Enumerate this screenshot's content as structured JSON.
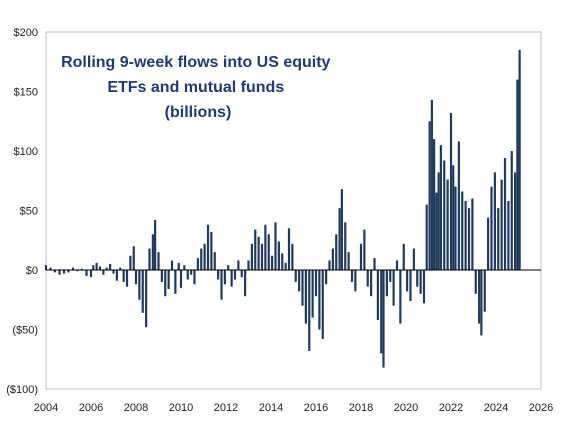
{
  "chart_data": {
    "type": "bar",
    "title_lines": [
      "Rolling 9-week flows into US equity",
      "ETFs and mutual funds",
      "(billions)"
    ],
    "xlabel": "",
    "ylabel": "",
    "xlim": [
      2004,
      2026
    ],
    "ylim": [
      -100,
      200
    ],
    "x_ticks": [
      2004,
      2006,
      2008,
      2010,
      2012,
      2014,
      2016,
      2018,
      2020,
      2022,
      2024,
      2026
    ],
    "x_tick_labels": [
      "2004",
      "2006",
      "2008",
      "2010",
      "2012",
      "2014",
      "2016",
      "2018",
      "2020",
      "2022",
      "2024",
      "2026"
    ],
    "y_ticks": [
      -100,
      -50,
      0,
      50,
      100,
      150,
      200
    ],
    "y_tick_labels": [
      "($100)",
      "($50)",
      "$0",
      "$50",
      "$100",
      "$150",
      "$200"
    ],
    "grid": false,
    "legend": false,
    "colors": {
      "bar": "#1f3a5f",
      "title": "#1f3a7a",
      "axis": "#000000",
      "frame": "#bfbfbf"
    },
    "series": [
      {
        "values": [
          [
            2004.0,
            4
          ],
          [
            2004.2,
            2
          ],
          [
            2004.4,
            -2
          ],
          [
            2004.6,
            -4
          ],
          [
            2004.8,
            -3
          ],
          [
            2005.0,
            -2
          ],
          [
            2005.2,
            2
          ],
          [
            2005.4,
            -1
          ],
          [
            2005.6,
            1
          ],
          [
            2005.8,
            -5
          ],
          [
            2006.0,
            -6
          ],
          [
            2006.1,
            4
          ],
          [
            2006.25,
            6
          ],
          [
            2006.4,
            3
          ],
          [
            2006.55,
            -4
          ],
          [
            2006.7,
            2
          ],
          [
            2006.85,
            5
          ],
          [
            2007.0,
            -3
          ],
          [
            2007.15,
            -9
          ],
          [
            2007.3,
            2
          ],
          [
            2007.45,
            -10
          ],
          [
            2007.6,
            -14
          ],
          [
            2007.75,
            12
          ],
          [
            2007.9,
            20
          ],
          [
            2008.0,
            -12
          ],
          [
            2008.15,
            -25
          ],
          [
            2008.3,
            -36
          ],
          [
            2008.45,
            -48
          ],
          [
            2008.6,
            18
          ],
          [
            2008.75,
            30
          ],
          [
            2008.85,
            42
          ],
          [
            2009.0,
            15
          ],
          [
            2009.15,
            -10
          ],
          [
            2009.3,
            -22
          ],
          [
            2009.45,
            -16
          ],
          [
            2009.6,
            8
          ],
          [
            2009.75,
            -20
          ],
          [
            2009.9,
            6
          ],
          [
            2010.0,
            -15
          ],
          [
            2010.15,
            4
          ],
          [
            2010.3,
            -8
          ],
          [
            2010.45,
            -4
          ],
          [
            2010.6,
            -12
          ],
          [
            2010.75,
            10
          ],
          [
            2010.9,
            18
          ],
          [
            2011.05,
            22
          ],
          [
            2011.2,
            38
          ],
          [
            2011.35,
            32
          ],
          [
            2011.5,
            15
          ],
          [
            2011.65,
            -8
          ],
          [
            2011.8,
            -25
          ],
          [
            2011.95,
            -12
          ],
          [
            2012.1,
            4
          ],
          [
            2012.25,
            -14
          ],
          [
            2012.4,
            -8
          ],
          [
            2012.55,
            8
          ],
          [
            2012.7,
            -6
          ],
          [
            2012.85,
            -22
          ],
          [
            2013.0,
            8
          ],
          [
            2013.15,
            22
          ],
          [
            2013.3,
            34
          ],
          [
            2013.45,
            28
          ],
          [
            2013.6,
            22
          ],
          [
            2013.75,
            38
          ],
          [
            2013.9,
            30
          ],
          [
            2014.05,
            12
          ],
          [
            2014.2,
            40
          ],
          [
            2014.35,
            24
          ],
          [
            2014.5,
            14
          ],
          [
            2014.65,
            6
          ],
          [
            2014.8,
            35
          ],
          [
            2014.95,
            22
          ],
          [
            2015.1,
            -10
          ],
          [
            2015.25,
            -18
          ],
          [
            2015.4,
            -30
          ],
          [
            2015.55,
            -45
          ],
          [
            2015.7,
            -68
          ],
          [
            2015.85,
            -40
          ],
          [
            2016.0,
            -22
          ],
          [
            2016.15,
            -50
          ],
          [
            2016.3,
            -58
          ],
          [
            2016.45,
            -12
          ],
          [
            2016.6,
            8
          ],
          [
            2016.75,
            18
          ],
          [
            2016.9,
            30
          ],
          [
            2017.05,
            52
          ],
          [
            2017.15,
            68
          ],
          [
            2017.3,
            40
          ],
          [
            2017.45,
            15
          ],
          [
            2017.6,
            -10
          ],
          [
            2017.75,
            -18
          ],
          [
            2018.0,
            22
          ],
          [
            2018.15,
            34
          ],
          [
            2018.3,
            -14
          ],
          [
            2018.45,
            -22
          ],
          [
            2018.6,
            10
          ],
          [
            2018.75,
            -42
          ],
          [
            2018.9,
            -70
          ],
          [
            2019.0,
            -82
          ],
          [
            2019.15,
            -22
          ],
          [
            2019.3,
            -10
          ],
          [
            2019.45,
            -30
          ],
          [
            2019.6,
            8
          ],
          [
            2019.75,
            -45
          ],
          [
            2019.9,
            22
          ],
          [
            2020.05,
            -18
          ],
          [
            2020.2,
            -26
          ],
          [
            2020.35,
            18
          ],
          [
            2020.5,
            -14
          ],
          [
            2020.65,
            -20
          ],
          [
            2020.8,
            -28
          ],
          [
            2020.92,
            55
          ],
          [
            2021.05,
            125
          ],
          [
            2021.15,
            143
          ],
          [
            2021.25,
            110
          ],
          [
            2021.35,
            65
          ],
          [
            2021.45,
            82
          ],
          [
            2021.55,
            105
          ],
          [
            2021.7,
            92
          ],
          [
            2021.85,
            76
          ],
          [
            2022.0,
            132
          ],
          [
            2022.1,
            88
          ],
          [
            2022.2,
            70
          ],
          [
            2022.35,
            108
          ],
          [
            2022.5,
            66
          ],
          [
            2022.65,
            58
          ],
          [
            2022.8,
            52
          ],
          [
            2022.95,
            60
          ],
          [
            2023.1,
            -20
          ],
          [
            2023.25,
            -45
          ],
          [
            2023.35,
            -55
          ],
          [
            2023.5,
            -35
          ],
          [
            2023.65,
            44
          ],
          [
            2023.8,
            70
          ],
          [
            2023.95,
            82
          ],
          [
            2024.1,
            52
          ],
          [
            2024.25,
            76
          ],
          [
            2024.4,
            94
          ],
          [
            2024.55,
            58
          ],
          [
            2024.7,
            100
          ],
          [
            2024.85,
            82
          ],
          [
            2024.95,
            160
          ],
          [
            2025.05,
            185
          ]
        ]
      }
    ]
  }
}
